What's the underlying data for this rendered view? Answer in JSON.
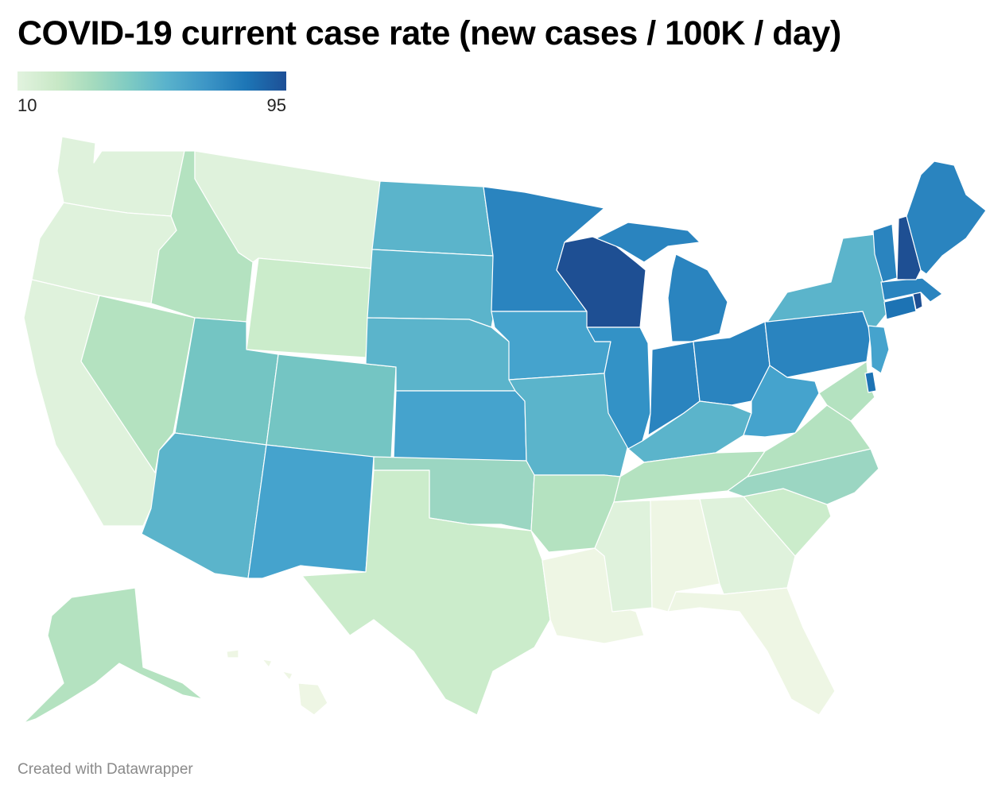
{
  "title": "COVID-19 current case rate (new cases / 100K / day)",
  "legend": {
    "min": "10",
    "max": "95"
  },
  "credit": "Created with Datawrapper",
  "colors": {
    "c1": "#eef6e4",
    "c2": "#dff2dc",
    "c3": "#cbeccb",
    "c4": "#b4e2c0",
    "c5": "#9bd6c2",
    "c6": "#74c5c3",
    "c7": "#5bb4cb",
    "c8": "#45a3cd",
    "c9": "#3392c6",
    "c10": "#2a84bf",
    "c11": "#1d73b4",
    "c12": "#1e4f93"
  }
}
